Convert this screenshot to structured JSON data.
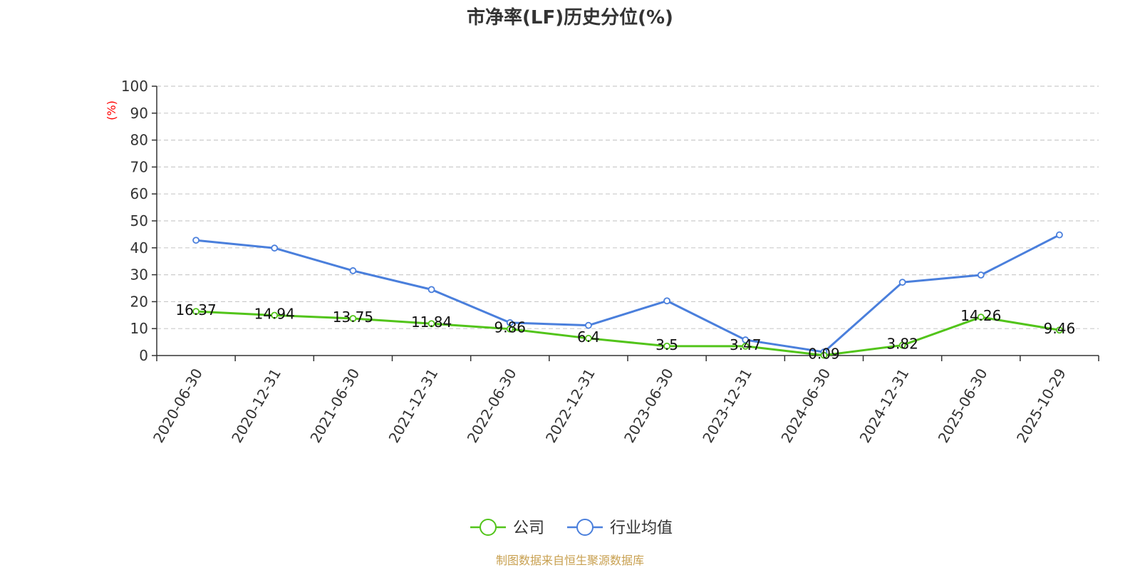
{
  "chart_data": {
    "type": "line",
    "title": "市净率(LF)历史分位(%)",
    "ylabel": "(%)",
    "ylim": [
      0,
      100
    ],
    "yticks": [
      0,
      10,
      20,
      30,
      40,
      50,
      60,
      70,
      80,
      90,
      100
    ],
    "grid": true,
    "legend_position": "bottom",
    "categories": [
      "2020-06-30",
      "2020-12-31",
      "2021-06-30",
      "2021-12-31",
      "2022-06-30",
      "2022-12-31",
      "2023-06-30",
      "2023-12-31",
      "2024-06-30",
      "2024-12-31",
      "2025-06-30",
      "2025-10-29"
    ],
    "series": [
      {
        "name": "公司",
        "color": "#52c41a",
        "values": [
          16.37,
          14.94,
          13.75,
          11.84,
          9.86,
          6.4,
          3.5,
          3.47,
          0.09,
          3.82,
          14.26,
          9.46
        ],
        "labels": [
          "16.37",
          "14.94",
          "13.75",
          "11.84",
          "9.86",
          "6.4",
          "3.5",
          "3.47",
          "0.09",
          "3.82",
          "14.26",
          "9.46"
        ]
      },
      {
        "name": "行业均值",
        "color": "#4a7fdc",
        "values": [
          42.8,
          39.9,
          31.5,
          24.5,
          12.2,
          11.2,
          20.3,
          5.8,
          1.3,
          27.2,
          29.9,
          44.8
        ]
      }
    ]
  },
  "source_text": "制图数据来自恒生聚源数据库",
  "colors": {
    "axis": "#333333",
    "grid": "#cccccc",
    "unit": "#ff0000",
    "source": "#c8a050"
  }
}
